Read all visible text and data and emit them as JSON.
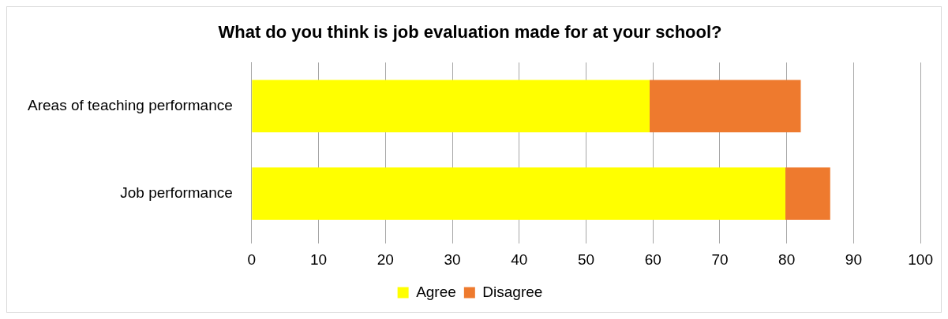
{
  "chart_data": {
    "type": "bar",
    "orientation": "horizontal",
    "stacked": true,
    "title": "What do you think is job evaluation made for at your school?",
    "categories": [
      "Areas of teaching performance",
      "Job performance"
    ],
    "series": [
      {
        "name": "Agree",
        "color": "#ffff00",
        "values": [
          59.5,
          79.8
        ]
      },
      {
        "name": "Disagree",
        "color": "#ee7a2e",
        "values": [
          22.6,
          6.7
        ]
      }
    ],
    "xlim": [
      0,
      100
    ],
    "xticks": [
      0,
      10,
      20,
      30,
      40,
      50,
      60,
      70,
      80,
      90,
      100
    ],
    "grid": "x",
    "legend": "bottom"
  }
}
